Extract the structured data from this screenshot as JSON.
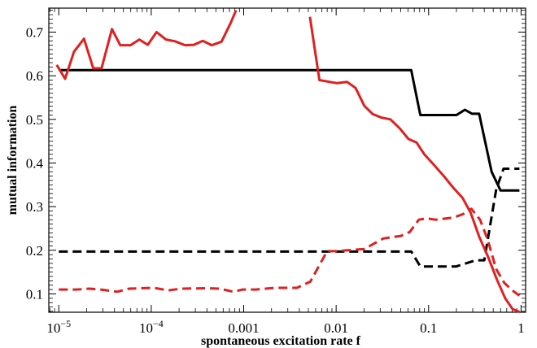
{
  "chart_data": {
    "type": "line",
    "title": "",
    "xlabel": "spontaneous excitation rate f",
    "ylabel": "mutual information",
    "x_scale": "log",
    "xlim": [
      7.8e-06,
      1.12
    ],
    "ylim": [
      0.058,
      0.755
    ],
    "grid": false,
    "x_ticks": [
      {
        "value": 1e-05,
        "base": "10",
        "exp": "−5"
      },
      {
        "value": 0.0001,
        "base": "10",
        "exp": "−4"
      },
      {
        "value": 0.001,
        "label": "0.001"
      },
      {
        "value": 0.01,
        "label": "0.01"
      },
      {
        "value": 0.1,
        "label": "0.1"
      },
      {
        "value": 1,
        "label": "1"
      }
    ],
    "y_ticks": [
      0.1,
      0.2,
      0.3,
      0.4,
      0.5,
      0.6,
      0.7
    ],
    "y_tick_labels": [
      "0.1",
      "0.2",
      "0.3",
      "0.4",
      "0.5",
      "0.6",
      "0.7"
    ],
    "series": [
      {
        "color": "#000000",
        "dash": false,
        "points": [
          [
            1e-05,
            0.613
          ],
          [
            0.0649,
            0.613
          ],
          [
            0.0813,
            0.51
          ],
          [
            0.2,
            0.51
          ],
          [
            0.247,
            0.522
          ],
          [
            0.295,
            0.513
          ],
          [
            0.352,
            0.513
          ],
          [
            0.48,
            0.38
          ],
          [
            0.6,
            0.337
          ],
          [
            0.96,
            0.337
          ]
        ]
      },
      {
        "color": "#000000",
        "dash": true,
        "points": [
          [
            1e-05,
            0.197
          ],
          [
            0.065,
            0.197
          ],
          [
            0.0813,
            0.163
          ],
          [
            0.199,
            0.163
          ],
          [
            0.323,
            0.177
          ],
          [
            0.4,
            0.177
          ],
          [
            0.539,
            0.34
          ],
          [
            0.647,
            0.387
          ],
          [
            0.96,
            0.387
          ]
        ]
      },
      {
        "color": "#e02020",
        "dash": false,
        "points": [
          [
            9.5e-06,
            0.625
          ],
          [
            1.17e-05,
            0.593
          ],
          [
            1.46e-05,
            0.655
          ],
          [
            1.87e-05,
            0.685
          ],
          [
            2.36e-05,
            0.617
          ],
          [
            2.9e-05,
            0.617
          ],
          [
            3.76e-05,
            0.707
          ],
          [
            4.62e-05,
            0.67
          ],
          [
            5.96e-05,
            0.67
          ],
          [
            7.42e-05,
            0.683
          ],
          [
            9.17e-05,
            0.671
          ],
          [
            0.000114,
            0.7
          ],
          [
            0.000144,
            0.683
          ],
          [
            0.000181,
            0.679
          ],
          [
            0.000232,
            0.67
          ],
          [
            0.000289,
            0.671
          ],
          [
            0.000361,
            0.68
          ],
          [
            0.000451,
            0.67
          ],
          [
            0.000575,
            0.678
          ],
          [
            0.000719,
            0.72
          ],
          [
            0.000828,
            0.75
          ]
        ]
      },
      {
        "color": "#e02020",
        "dash": false,
        "points": [
          [
            0.0052,
            0.735
          ],
          [
            0.0066,
            0.59
          ],
          [
            0.0102,
            0.583
          ],
          [
            0.0131,
            0.586
          ],
          [
            0.0162,
            0.572
          ],
          [
            0.0202,
            0.531
          ],
          [
            0.0249,
            0.512
          ],
          [
            0.031,
            0.504
          ],
          [
            0.0386,
            0.5
          ],
          [
            0.0484,
            0.48
          ],
          [
            0.0607,
            0.455
          ],
          [
            0.0741,
            0.447
          ],
          [
            0.0898,
            0.42
          ],
          [
            0.114,
            0.396
          ],
          [
            0.146,
            0.37
          ],
          [
            0.182,
            0.345
          ],
          [
            0.233,
            0.32
          ],
          [
            0.285,
            0.286
          ],
          [
            0.354,
            0.23
          ],
          [
            0.44,
            0.185
          ],
          [
            0.55,
            0.132
          ],
          [
            0.673,
            0.09
          ],
          [
            0.81,
            0.065
          ],
          [
            0.96,
            0.059
          ]
        ]
      },
      {
        "color": "#e02020",
        "dash": true,
        "points": [
          [
            1e-05,
            0.11
          ],
          [
            1.56e-05,
            0.11
          ],
          [
            2.16e-05,
            0.112
          ],
          [
            2.83e-05,
            0.11
          ],
          [
            4.3e-05,
            0.105
          ],
          [
            5.8e-05,
            0.112
          ],
          [
            0.000107,
            0.114
          ],
          [
            0.000153,
            0.108
          ],
          [
            0.000208,
            0.112
          ],
          [
            0.000408,
            0.113
          ],
          [
            0.000551,
            0.112
          ],
          [
            0.000775,
            0.105
          ],
          [
            0.000975,
            0.11
          ],
          [
            0.00135,
            0.11
          ],
          [
            0.00215,
            0.114
          ],
          [
            0.00377,
            0.114
          ],
          [
            0.00526,
            0.128
          ],
          [
            0.00797,
            0.198
          ],
          [
            0.0101,
            0.198
          ],
          [
            0.0133,
            0.2
          ],
          [
            0.0203,
            0.203
          ],
          [
            0.0255,
            0.215
          ],
          [
            0.0324,
            0.227
          ],
          [
            0.0502,
            0.233
          ],
          [
            0.0625,
            0.242
          ],
          [
            0.0785,
            0.27
          ],
          [
            0.0945,
            0.273
          ],
          [
            0.119,
            0.27
          ],
          [
            0.185,
            0.275
          ],
          [
            0.236,
            0.283
          ],
          [
            0.29,
            0.295
          ],
          [
            0.36,
            0.27
          ],
          [
            0.435,
            0.225
          ],
          [
            0.538,
            0.157
          ],
          [
            0.66,
            0.125
          ],
          [
            0.807,
            0.108
          ],
          [
            0.96,
            0.096
          ]
        ]
      }
    ]
  }
}
